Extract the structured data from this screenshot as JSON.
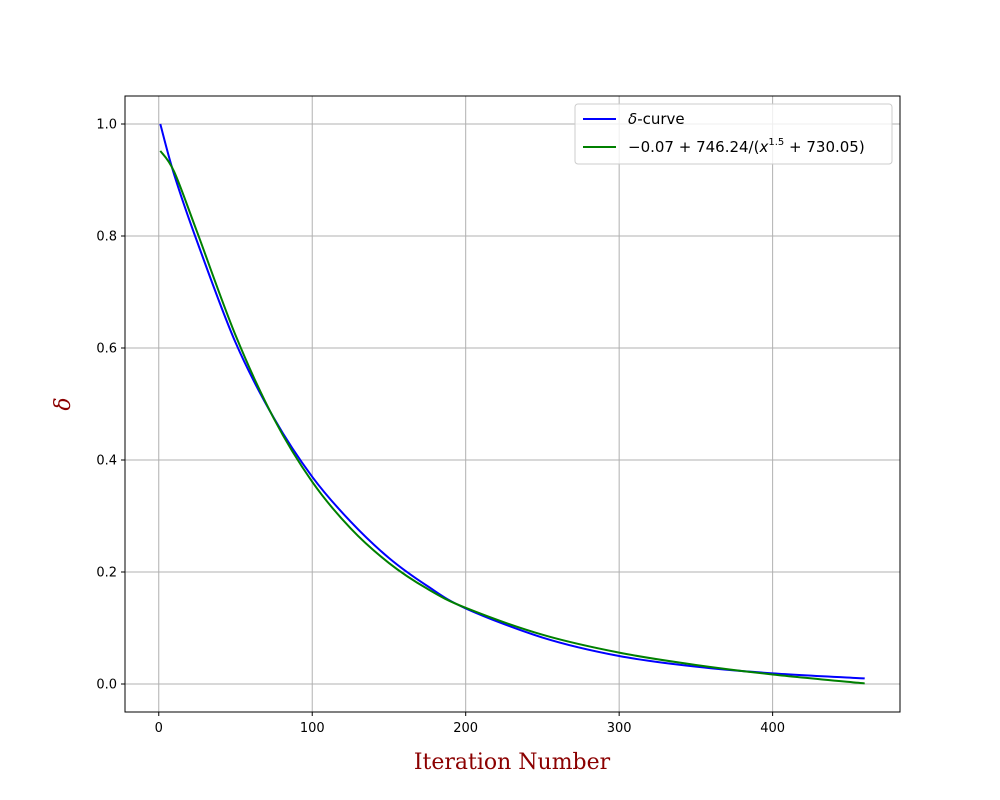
{
  "chart_data": {
    "type": "line",
    "xlabel": "Iteration Number",
    "ylabel": "δ",
    "xlim": [
      -22,
      483
    ],
    "ylim": [
      -0.05,
      1.05
    ],
    "xticks": [
      0,
      100,
      200,
      300,
      400
    ],
    "yticks": [
      0.0,
      0.2,
      0.4,
      0.6,
      0.8,
      1.0
    ],
    "xtick_labels": [
      "0",
      "100",
      "200",
      "300",
      "400"
    ],
    "ytick_labels": [
      "0.0",
      "0.2",
      "0.4",
      "0.6",
      "0.8",
      "1.0"
    ],
    "grid": true,
    "legend_position": "top-right",
    "series": [
      {
        "name": "δ-curve",
        "color": "#0000ff",
        "x": [
          1,
          10,
          25,
          50,
          75,
          100,
          125,
          150,
          175,
          200,
          250,
          300,
          350,
          400,
          460
        ],
        "y": [
          1.0,
          0.91,
          0.79,
          0.61,
          0.475,
          0.37,
          0.29,
          0.225,
          0.175,
          0.135,
          0.083,
          0.05,
          0.031,
          0.019,
          0.01
        ]
      },
      {
        "name": "−0.07 + 746.24/(x^1.5 + 730.05)",
        "color": "#008000",
        "x": [
          1,
          10,
          25,
          50,
          75,
          100,
          125,
          150,
          175,
          200,
          250,
          300,
          350,
          400,
          460
        ],
        "y": [
          0.952,
          0.915,
          0.807,
          0.623,
          0.474,
          0.361,
          0.278,
          0.216,
          0.17,
          0.136,
          0.088,
          0.056,
          0.034,
          0.017,
          0.001
        ]
      }
    ]
  },
  "legend": {
    "entries": [
      {
        "label_prefix": "δ",
        "label_suffix": "-curve"
      },
      {
        "label_prefix": "−0.07 + 746.24/(",
        "label_var": "x",
        "label_sup": "1.5",
        "label_suffix": " + 730.05)"
      }
    ]
  },
  "colors": {
    "axis_title": "#8b0000",
    "grid": "#b0b0b0",
    "frame": "#000000"
  }
}
